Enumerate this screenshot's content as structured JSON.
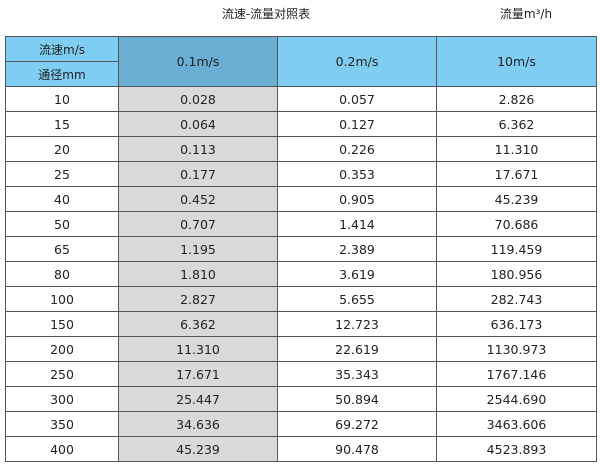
{
  "title": "流速-流量对照表",
  "unit_label": "流量m³/h",
  "header": {
    "velocity_label": "流速m/s",
    "diameter_label": "通径mm",
    "columns": [
      "0.1m/s",
      "0.2m/s",
      "10m/s"
    ]
  },
  "colors": {
    "header": "#7fcdf2",
    "header_highlight": "#6aafd3",
    "column_highlight": "#d9d9d9"
  },
  "rows": [
    [
      "10",
      "0.028",
      "0.057",
      "2.826"
    ],
    [
      "15",
      "0.064",
      "0.127",
      "6.362"
    ],
    [
      "20",
      "0.113",
      "0.226",
      "11.310"
    ],
    [
      "25",
      "0.177",
      "0.353",
      "17.671"
    ],
    [
      "40",
      "0.452",
      "0.905",
      "45.239"
    ],
    [
      "50",
      "0.707",
      "1.414",
      "70.686"
    ],
    [
      "65",
      "1.195",
      "2.389",
      "119.459"
    ],
    [
      "80",
      "1.810",
      "3.619",
      "180.956"
    ],
    [
      "100",
      "2.827",
      "5.655",
      "282.743"
    ],
    [
      "150",
      "6.362",
      "12.723",
      "636.173"
    ],
    [
      "200",
      "11.310",
      "22.619",
      "1130.973"
    ],
    [
      "250",
      "17.671",
      "35.343",
      "1767.146"
    ],
    [
      "300",
      "25.447",
      "50.894",
      "2544.690"
    ],
    [
      "350",
      "34.636",
      "69.272",
      "3463.606"
    ],
    [
      "400",
      "45.239",
      "90.478",
      "4523.893"
    ]
  ]
}
